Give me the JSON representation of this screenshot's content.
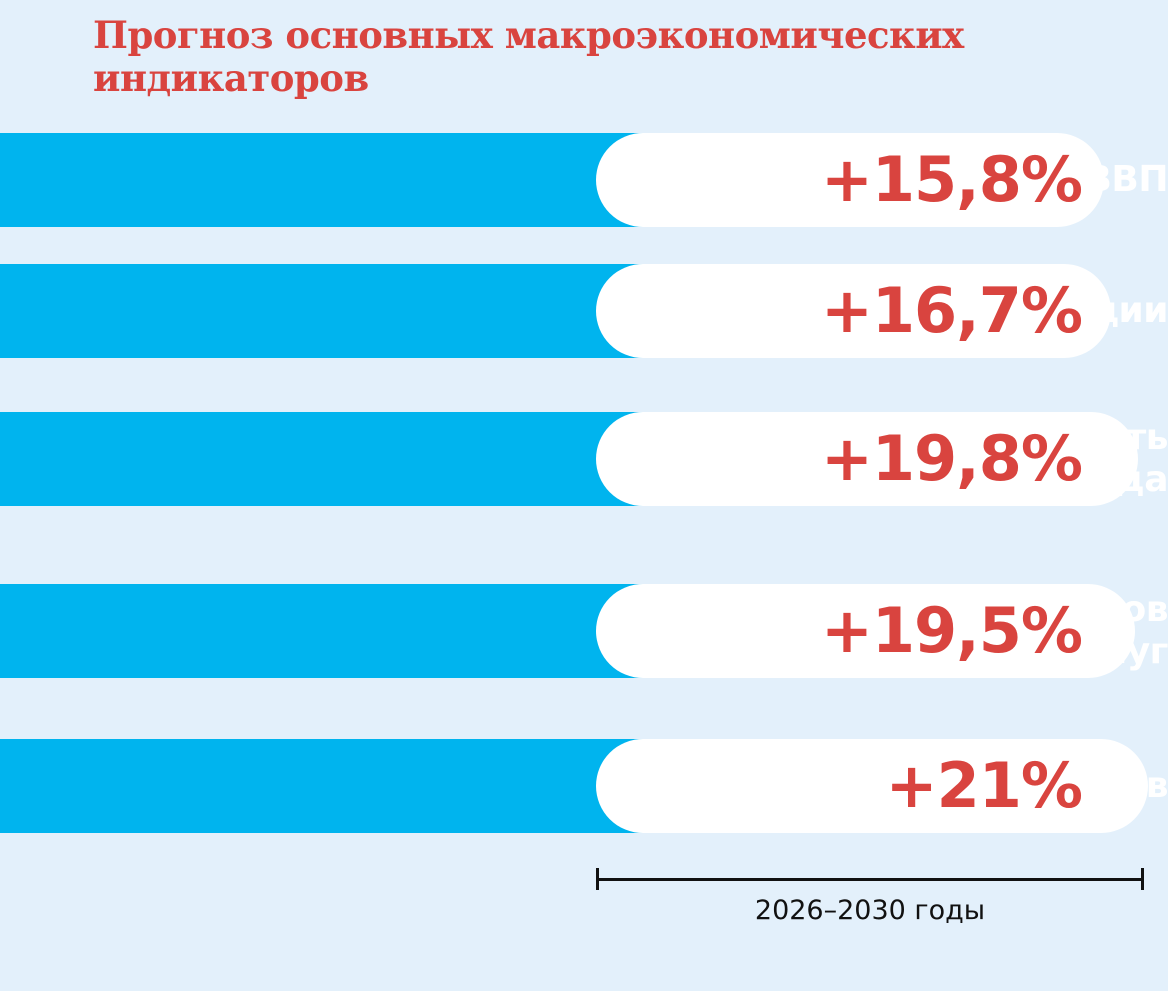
{
  "colors": {
    "background": "#e3f0fb",
    "band": "#00b4ee",
    "pill": "#ffffff",
    "title": "#d9443f",
    "value": "#d9443f"
  },
  "chart_data": {
    "type": "bar",
    "title": "Прогноз основных макроэкономических индикаторов",
    "categories": [
      [
        "ВВП"
      ],
      [
        "Инвестиции"
      ],
      [
        "Производительность",
        "труда"
      ],
      [
        "Экспорт товаров",
        "и услуг"
      ],
      [
        "Рост доходов"
      ]
    ],
    "values": [
      15.8,
      16.7,
      19.8,
      19.5,
      21
    ],
    "value_labels": [
      "+15,8%",
      "+16,7%",
      "+19,8%",
      "+19,5%",
      "+21%"
    ],
    "unit": "%",
    "period_label": "2026–2030 годы",
    "xlim": [
      0,
      21
    ],
    "grid": false,
    "legend": "none"
  }
}
